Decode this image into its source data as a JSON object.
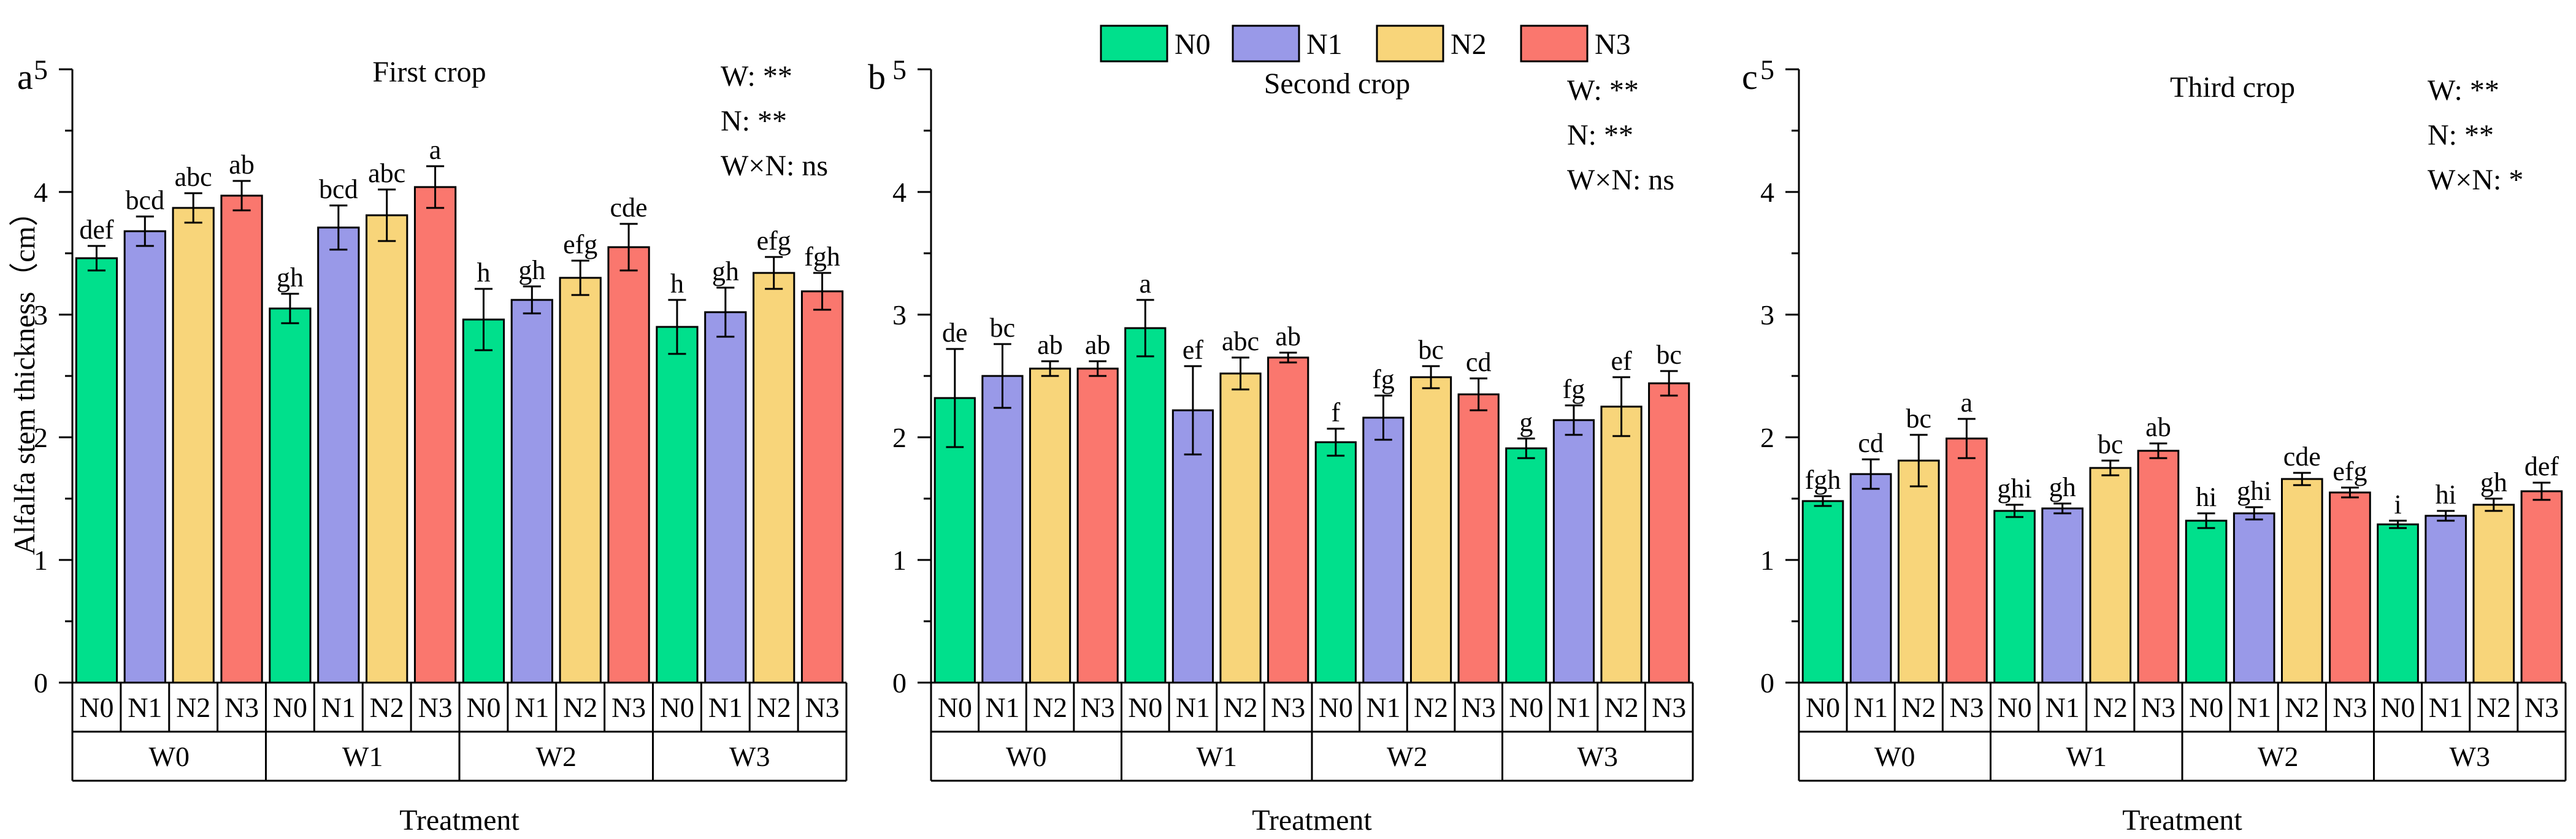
{
  "legend": [
    {
      "label": "N0",
      "color": "#00E08C"
    },
    {
      "label": "N1",
      "color": "#9999E8"
    },
    {
      "label": "N2",
      "color": "#F8D57A"
    },
    {
      "label": "N3",
      "color": "#FA776E"
    }
  ],
  "ylabel": "Alfalfa stem thickness（cm）",
  "xlabel": "Treatment",
  "chart_data": [
    {
      "type": "bar",
      "panel": "a",
      "title": "First crop",
      "ylim": [
        0,
        5
      ],
      "yticks": [
        "0",
        "1",
        "2",
        "3",
        "4",
        "5"
      ],
      "groups": [
        "W0",
        "W1",
        "W2",
        "W3"
      ],
      "subcategories": [
        "N0",
        "N1",
        "N2",
        "N3"
      ],
      "stats": [
        "W: **",
        "N: **",
        "W×N: ns"
      ],
      "series": [
        {
          "name": "N0",
          "values": [
            3.46,
            3.05,
            2.96,
            2.9
          ],
          "errors": [
            0.1,
            0.12,
            0.25,
            0.22
          ],
          "letters": [
            "def",
            "gh",
            "h",
            "h"
          ]
        },
        {
          "name": "N1",
          "values": [
            3.68,
            3.71,
            3.12,
            3.02
          ],
          "errors": [
            0.12,
            0.18,
            0.11,
            0.2
          ],
          "letters": [
            "bcd",
            "bcd",
            "gh",
            "gh"
          ]
        },
        {
          "name": "N2",
          "values": [
            3.87,
            3.81,
            3.3,
            3.34
          ],
          "errors": [
            0.12,
            0.21,
            0.14,
            0.13
          ],
          "letters": [
            "abc",
            "abc",
            "efg",
            "efg"
          ]
        },
        {
          "name": "N3",
          "values": [
            3.97,
            4.04,
            3.55,
            3.19
          ],
          "errors": [
            0.12,
            0.17,
            0.19,
            0.15
          ],
          "letters": [
            "ab",
            "a",
            "cde",
            "fgh"
          ]
        }
      ]
    },
    {
      "type": "bar",
      "panel": "b",
      "title": "Second crop",
      "ylim": [
        0,
        5
      ],
      "yticks": [
        "0",
        "1",
        "2",
        "3",
        "4",
        "5"
      ],
      "groups": [
        "W0",
        "W1",
        "W2",
        "W3"
      ],
      "subcategories": [
        "N0",
        "N1",
        "N2",
        "N3"
      ],
      "stats": [
        "W: **",
        "N: **",
        "W×N: ns"
      ],
      "series": [
        {
          "name": "N0",
          "values": [
            2.32,
            2.89,
            1.96,
            1.91
          ],
          "errors": [
            0.4,
            0.23,
            0.11,
            0.08
          ],
          "letters": [
            "de",
            "a",
            "f",
            "g"
          ]
        },
        {
          "name": "N1",
          "values": [
            2.5,
            2.22,
            2.16,
            2.14
          ],
          "errors": [
            0.26,
            0.36,
            0.18,
            0.12
          ],
          "letters": [
            "bc",
            "ef",
            "fg",
            "fg"
          ]
        },
        {
          "name": "N2",
          "values": [
            2.56,
            2.52,
            2.49,
            2.25
          ],
          "errors": [
            0.06,
            0.13,
            0.09,
            0.24
          ],
          "letters": [
            "ab",
            "abc",
            "bc",
            "ef"
          ]
        },
        {
          "name": "N3",
          "values": [
            2.56,
            2.65,
            2.35,
            2.44
          ],
          "errors": [
            0.06,
            0.04,
            0.13,
            0.1
          ],
          "letters": [
            "ab",
            "ab",
            "cd",
            "bc"
          ]
        }
      ]
    },
    {
      "type": "bar",
      "panel": "c",
      "title": "Third crop",
      "ylim": [
        0,
        5
      ],
      "yticks": [
        "0",
        "1",
        "2",
        "3",
        "4",
        "5"
      ],
      "groups": [
        "W0",
        "W1",
        "W2",
        "W3"
      ],
      "subcategories": [
        "N0",
        "N1",
        "N2",
        "N3"
      ],
      "stats": [
        "W: **",
        "N: **",
        "W×N: *"
      ],
      "series": [
        {
          "name": "N0",
          "values": [
            1.48,
            1.4,
            1.32,
            1.29
          ],
          "errors": [
            0.04,
            0.05,
            0.06,
            0.03
          ],
          "letters": [
            "fgh",
            "ghi",
            "hi",
            "i"
          ]
        },
        {
          "name": "N1",
          "values": [
            1.7,
            1.42,
            1.38,
            1.36
          ],
          "errors": [
            0.12,
            0.04,
            0.05,
            0.04
          ],
          "letters": [
            "cd",
            "gh",
            "ghi",
            "hi"
          ]
        },
        {
          "name": "N2",
          "values": [
            1.81,
            1.75,
            1.66,
            1.45
          ],
          "errors": [
            0.21,
            0.06,
            0.05,
            0.05
          ],
          "letters": [
            "bc",
            "bc",
            "cde",
            "gh"
          ]
        },
        {
          "name": "N3",
          "values": [
            1.99,
            1.89,
            1.55,
            1.56
          ],
          "errors": [
            0.16,
            0.06,
            0.04,
            0.07
          ],
          "letters": [
            "a",
            "ab",
            "efg",
            "def"
          ]
        }
      ]
    }
  ]
}
